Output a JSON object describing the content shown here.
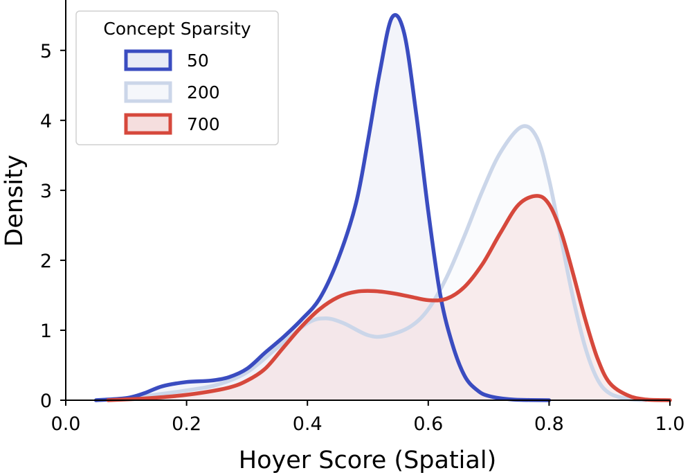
{
  "chart_data": {
    "type": "area",
    "xlabel": "Hoyer Score (Spatial)",
    "ylabel": "Density",
    "xlim": [
      0.0,
      1.0
    ],
    "ylim": [
      0,
      5.6
    ],
    "xticks": [
      "0.0",
      "0.2",
      "0.4",
      "0.6",
      "0.8",
      "1.0"
    ],
    "yticks": [
      "0",
      "1",
      "2",
      "3",
      "4",
      "5"
    ],
    "grid": false,
    "legend": {
      "title": "Concept Sparsity",
      "placement": "top-left"
    },
    "series": [
      {
        "name": "50",
        "color": "#3a4cc0",
        "fill": "#e9ebf6",
        "points": [
          [
            0.05,
            0.0
          ],
          [
            0.1,
            0.03
          ],
          [
            0.13,
            0.1
          ],
          [
            0.16,
            0.2
          ],
          [
            0.2,
            0.26
          ],
          [
            0.24,
            0.28
          ],
          [
            0.27,
            0.33
          ],
          [
            0.3,
            0.45
          ],
          [
            0.33,
            0.68
          ],
          [
            0.36,
            0.9
          ],
          [
            0.39,
            1.15
          ],
          [
            0.42,
            1.45
          ],
          [
            0.45,
            2.0
          ],
          [
            0.48,
            2.8
          ],
          [
            0.5,
            3.7
          ],
          [
            0.52,
            4.7
          ],
          [
            0.54,
            5.47
          ],
          [
            0.56,
            5.25
          ],
          [
            0.58,
            4.1
          ],
          [
            0.6,
            2.7
          ],
          [
            0.62,
            1.5
          ],
          [
            0.64,
            0.8
          ],
          [
            0.66,
            0.35
          ],
          [
            0.68,
            0.15
          ],
          [
            0.7,
            0.06
          ],
          [
            0.74,
            0.01
          ],
          [
            0.8,
            0.0
          ]
        ]
      },
      {
        "name": "200",
        "color": "#cbd6e9",
        "fill": "#f5f7fb",
        "points": [
          [
            0.05,
            0.0
          ],
          [
            0.1,
            0.03
          ],
          [
            0.15,
            0.08
          ],
          [
            0.2,
            0.14
          ],
          [
            0.25,
            0.22
          ],
          [
            0.3,
            0.4
          ],
          [
            0.35,
            0.75
          ],
          [
            0.4,
            1.1
          ],
          [
            0.43,
            1.17
          ],
          [
            0.46,
            1.1
          ],
          [
            0.5,
            0.93
          ],
          [
            0.53,
            0.92
          ],
          [
            0.57,
            1.05
          ],
          [
            0.6,
            1.3
          ],
          [
            0.63,
            1.75
          ],
          [
            0.66,
            2.35
          ],
          [
            0.69,
            3.0
          ],
          [
            0.72,
            3.55
          ],
          [
            0.755,
            3.91
          ],
          [
            0.78,
            3.75
          ],
          [
            0.8,
            3.15
          ],
          [
            0.82,
            2.3
          ],
          [
            0.84,
            1.45
          ],
          [
            0.86,
            0.75
          ],
          [
            0.88,
            0.3
          ],
          [
            0.9,
            0.1
          ],
          [
            0.93,
            0.02
          ],
          [
            0.96,
            0.0
          ]
        ]
      },
      {
        "name": "700",
        "color": "#d6483c",
        "fill": "#f5dede",
        "points": [
          [
            0.07,
            0.0
          ],
          [
            0.12,
            0.02
          ],
          [
            0.17,
            0.05
          ],
          [
            0.22,
            0.1
          ],
          [
            0.27,
            0.18
          ],
          [
            0.3,
            0.28
          ],
          [
            0.33,
            0.45
          ],
          [
            0.36,
            0.75
          ],
          [
            0.39,
            1.05
          ],
          [
            0.42,
            1.3
          ],
          [
            0.45,
            1.47
          ],
          [
            0.48,
            1.55
          ],
          [
            0.51,
            1.56
          ],
          [
            0.54,
            1.53
          ],
          [
            0.57,
            1.48
          ],
          [
            0.6,
            1.43
          ],
          [
            0.63,
            1.45
          ],
          [
            0.66,
            1.62
          ],
          [
            0.69,
            1.95
          ],
          [
            0.72,
            2.4
          ],
          [
            0.75,
            2.8
          ],
          [
            0.78,
            2.92
          ],
          [
            0.8,
            2.8
          ],
          [
            0.82,
            2.4
          ],
          [
            0.84,
            1.8
          ],
          [
            0.86,
            1.15
          ],
          [
            0.88,
            0.6
          ],
          [
            0.9,
            0.25
          ],
          [
            0.93,
            0.07
          ],
          [
            0.96,
            0.01
          ],
          [
            1.0,
            0.0
          ]
        ]
      }
    ]
  }
}
